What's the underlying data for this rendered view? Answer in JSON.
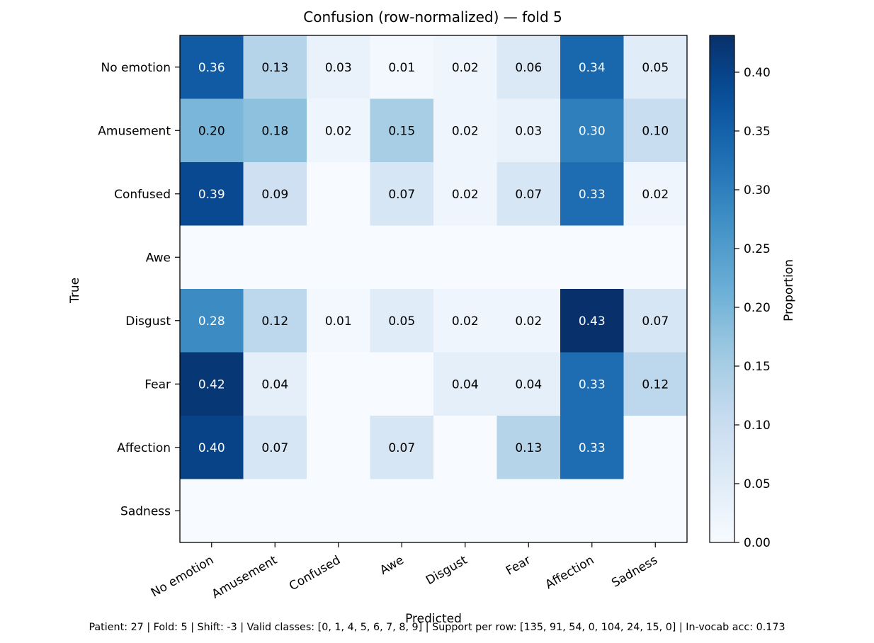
{
  "chart_data": {
    "type": "heatmap",
    "title": "Confusion (row-normalized) — fold 5",
    "xlabel": "Predicted",
    "ylabel": "True",
    "row_labels": [
      "No emotion",
      "Amusement",
      "Confused",
      "Awe",
      "Disgust",
      "Fear",
      "Affection",
      "Sadness"
    ],
    "col_labels": [
      "No emotion",
      "Amusement",
      "Confused",
      "Awe",
      "Disgust",
      "Fear",
      "Affection",
      "Sadness"
    ],
    "values": [
      [
        0.36,
        0.13,
        0.03,
        0.01,
        0.02,
        0.06,
        0.34,
        0.05
      ],
      [
        0.2,
        0.18,
        0.02,
        0.15,
        0.02,
        0.03,
        0.3,
        0.1
      ],
      [
        0.39,
        0.09,
        0.0,
        0.07,
        0.02,
        0.07,
        0.33,
        0.02
      ],
      [
        0.0,
        0.0,
        0.0,
        0.0,
        0.0,
        0.0,
        0.0,
        0.0
      ],
      [
        0.28,
        0.12,
        0.01,
        0.05,
        0.02,
        0.02,
        0.43,
        0.07
      ],
      [
        0.42,
        0.04,
        0.0,
        0.0,
        0.04,
        0.04,
        0.33,
        0.12
      ],
      [
        0.4,
        0.07,
        0.0,
        0.07,
        0.0,
        0.13,
        0.33,
        0.0
      ],
      [
        0.0,
        0.0,
        0.0,
        0.0,
        0.0,
        0.0,
        0.0,
        0.0
      ]
    ],
    "cell_labels": [
      [
        "0.36",
        "0.13",
        "0.03",
        "0.01",
        "0.02",
        "0.06",
        "0.34",
        "0.05"
      ],
      [
        "0.20",
        "0.18",
        "0.02",
        "0.15",
        "0.02",
        "0.03",
        "0.30",
        "0.10"
      ],
      [
        "0.39",
        "0.09",
        "",
        "0.07",
        "0.02",
        "0.07",
        "0.33",
        "0.02"
      ],
      [
        "",
        "",
        "",
        "",
        "",
        "",
        "",
        ""
      ],
      [
        "0.28",
        "0.12",
        "0.01",
        "0.05",
        "0.02",
        "0.02",
        "0.43",
        "0.07"
      ],
      [
        "0.42",
        "0.04",
        "",
        "",
        "0.04",
        "0.04",
        "0.33",
        "0.12"
      ],
      [
        "0.40",
        "0.07",
        "",
        "0.07",
        "",
        "0.13",
        "0.33",
        ""
      ],
      [
        "",
        "",
        "",
        "",
        "",
        "",
        "",
        ""
      ]
    ],
    "colormap": "Blues",
    "color_range": [
      0,
      0.4313
    ],
    "colorbar": {
      "label": "Proportion",
      "ticks": [
        0.0,
        0.05,
        0.1,
        0.15,
        0.2,
        0.25,
        0.3,
        0.35,
        0.4
      ],
      "tick_labels": [
        "0.00",
        "0.05",
        "0.10",
        "0.15",
        "0.20",
        "0.25",
        "0.30",
        "0.35",
        "0.40"
      ]
    },
    "grid": false
  },
  "footer": {
    "text": "Patient: 27 | Fold: 5 | Shift: -3 | Valid classes: [0, 1, 4, 5, 6, 7, 8, 9] | Support per row: [135, 91, 54, 0, 104, 24, 15, 0] | In-vocab acc: 0.173"
  }
}
